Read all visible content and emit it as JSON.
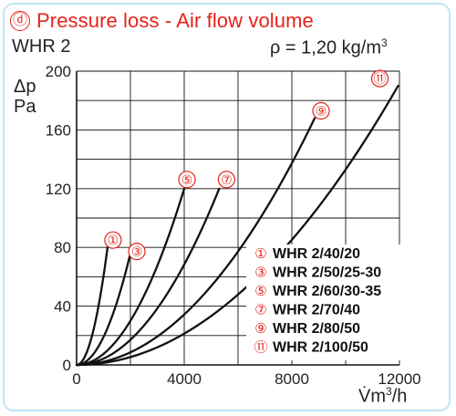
{
  "header": {
    "badge": "ⓓ",
    "title": "Pressure loss - Air flow volume",
    "model": "WHR 2",
    "density_prefix": "ρ = 1,20 kg/m",
    "density_exp": "3"
  },
  "axes": {
    "y_unit_line1": "Δp",
    "y_unit_line2": "Pa",
    "x_unit_prefix": "V̇m",
    "x_unit_exp": "3",
    "x_unit_suffix": "/h"
  },
  "colors": {
    "title": "#e2231a",
    "marker": "#e2231a",
    "curve": "#111111",
    "grid": "#111111",
    "frame": "#bfe4f5"
  },
  "chart_data": {
    "type": "line",
    "xlim": [
      0,
      12000
    ],
    "ylim": [
      0,
      200
    ],
    "x_ticks": [
      0,
      4000,
      8000,
      12000
    ],
    "y_ticks": [
      0,
      40,
      80,
      120,
      160,
      200
    ],
    "grid": true,
    "legend_position": "bottom-right",
    "series": [
      {
        "marker": "①",
        "name": "WHR 2/40/20",
        "x_max": 1150,
        "y_max": 80
      },
      {
        "marker": "③",
        "name": "WHR 2/50/25-30",
        "x_max": 2000,
        "y_max": 76
      },
      {
        "marker": "⑤",
        "name": "WHR 2/60/30-35",
        "x_max": 4000,
        "y_max": 120
      },
      {
        "marker": "⑦",
        "name": "WHR 2/70/40",
        "x_max": 5300,
        "y_max": 120
      },
      {
        "marker": "⑨",
        "name": "WHR 2/80/50",
        "x_max": 8850,
        "y_max": 168
      },
      {
        "marker": "⑪",
        "name": "WHR 2/100/50",
        "x_max": 11950,
        "y_max": 190
      }
    ]
  }
}
